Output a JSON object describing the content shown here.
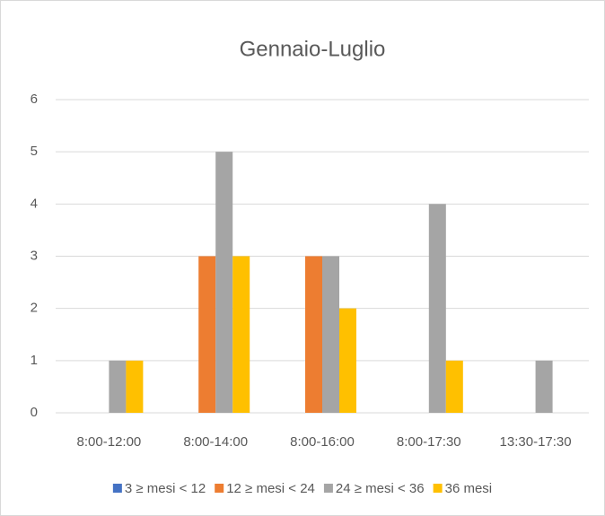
{
  "chart_data": {
    "type": "bar",
    "title": "Gennaio-Luglio",
    "categories": [
      "8:00-12:00",
      "8:00-14:00",
      "8:00-16:00",
      "8:00-17:30",
      "13:30-17:30"
    ],
    "series": [
      {
        "name": "3 ≥ mesi < 12",
        "color": "#4472c4",
        "values": [
          0,
          0,
          0,
          0,
          0
        ]
      },
      {
        "name": "12 ≥ mesi < 24",
        "color": "#ed7d31",
        "values": [
          0,
          3,
          3,
          0,
          0
        ]
      },
      {
        "name": "24 ≥ mesi < 36",
        "color": "#a5a5a5",
        "values": [
          1,
          5,
          3,
          4,
          1
        ]
      },
      {
        "name": "36 mesi",
        "color": "#ffc000",
        "values": [
          1,
          3,
          2,
          1,
          0
        ]
      }
    ],
    "ylim": [
      0,
      6
    ],
    "yticks": [
      0,
      1,
      2,
      3,
      4,
      5,
      6
    ],
    "grid": true,
    "legend": "bottom"
  }
}
